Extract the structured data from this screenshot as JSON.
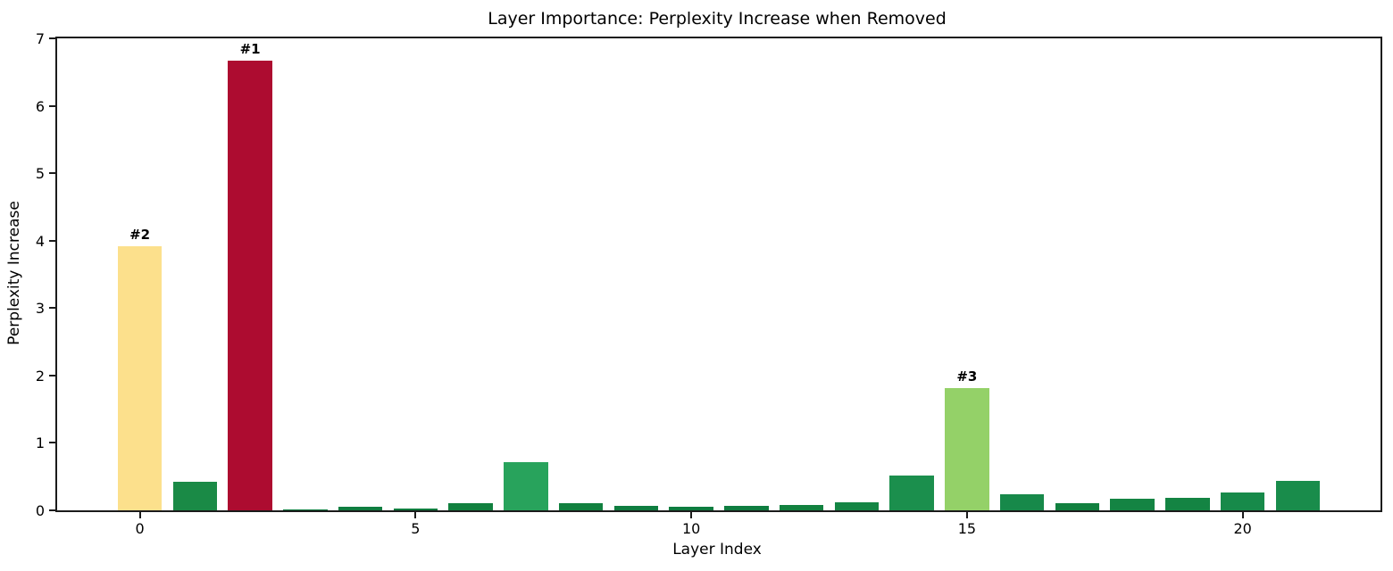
{
  "chart_data": {
    "type": "bar",
    "title": "Layer Importance: Perplexity Increase when Removed",
    "xlabel": "Layer Index",
    "ylabel": "Perplexity Increase",
    "xlim": [
      -1.5,
      22.5
    ],
    "ylim": [
      0,
      7
    ],
    "yticks": [
      0,
      1,
      2,
      3,
      4,
      5,
      6,
      7
    ],
    "xticks": [
      0,
      5,
      10,
      15,
      20
    ],
    "grid": false,
    "legend": null,
    "bar_width": 0.8,
    "categories": [
      0,
      1,
      2,
      3,
      4,
      5,
      6,
      7,
      8,
      9,
      10,
      11,
      12,
      13,
      14,
      15,
      16,
      17,
      18,
      19,
      20,
      21
    ],
    "values": [
      3.92,
      0.42,
      6.67,
      0.01,
      0.05,
      0.03,
      0.1,
      0.72,
      0.1,
      0.06,
      0.05,
      0.06,
      0.08,
      0.12,
      0.51,
      1.81,
      0.24,
      0.1,
      0.17,
      0.18,
      0.26,
      0.44
    ],
    "colors": [
      "#fce08c",
      "#1a8a46",
      "#ad0c30",
      "#0c7c3e",
      "#0f7d40",
      "#0c7c3e",
      "#11803f",
      "#28a35c",
      "#11803f",
      "#0f7d40",
      "#0e7c3f",
      "#0f7d40",
      "#12813f",
      "#148544",
      "#1b8f4d",
      "#94d168",
      "#17894a",
      "#11803f",
      "#148443",
      "#148443",
      "#178a4a",
      "#198c4b"
    ],
    "annotations": [
      {
        "layer": 2,
        "label": "#1"
      },
      {
        "layer": 0,
        "label": "#2"
      },
      {
        "layer": 15,
        "label": "#3"
      }
    ],
    "spine_color": "#1b1b1b",
    "background_color": "#ffffff"
  }
}
